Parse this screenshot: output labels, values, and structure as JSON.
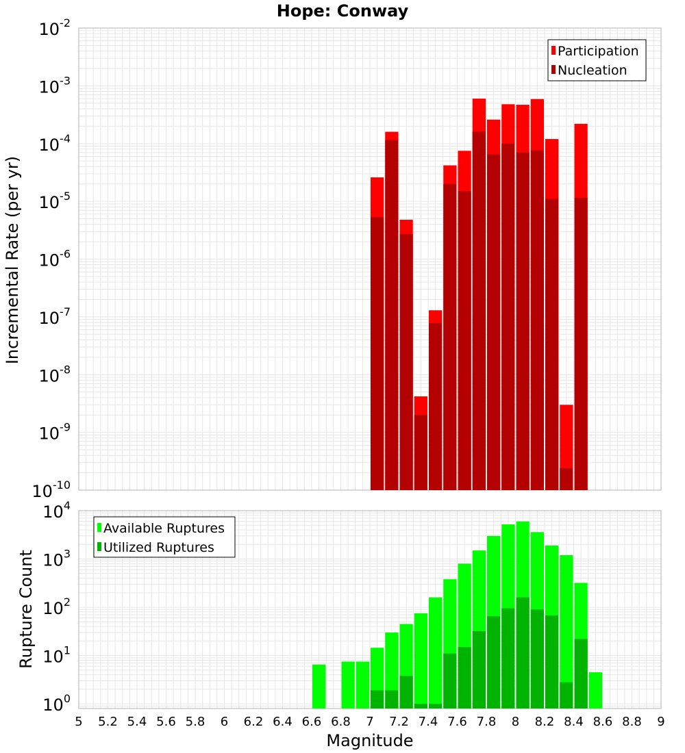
{
  "chart_data": [
    {
      "type": "bar",
      "title": "Hope: Conway",
      "xlabel": "",
      "ylabel": "Incremental Rate (per yr)",
      "yscale": "log",
      "ylim": [
        1e-10,
        0.01
      ],
      "xlim": [
        5,
        9
      ],
      "grid": true,
      "legend_position": "top-right",
      "y_tick_exponents": [
        "-10",
        "-9",
        "-8",
        "-7",
        "-6",
        "-5",
        "-4",
        "-3",
        "-2"
      ],
      "bin_width": 0.1,
      "series": [
        {
          "name": "Participation",
          "color": "#ff0000",
          "points": [
            {
              "x": 7.05,
              "y": 2.6e-05
            },
            {
              "x": 7.15,
              "y": 0.00016
            },
            {
              "x": 7.25,
              "y": 4.8e-06
            },
            {
              "x": 7.35,
              "y": 4.2e-09
            },
            {
              "x": 7.45,
              "y": 1.3e-07
            },
            {
              "x": 7.55,
              "y": 4.2e-05
            },
            {
              "x": 7.65,
              "y": 7.5e-05
            },
            {
              "x": 7.75,
              "y": 0.0006
            },
            {
              "x": 7.85,
              "y": 0.00026
            },
            {
              "x": 7.95,
              "y": 0.00048
            },
            {
              "x": 8.05,
              "y": 0.00047
            },
            {
              "x": 8.15,
              "y": 0.00059
            },
            {
              "x": 8.25,
              "y": 0.00012
            },
            {
              "x": 8.35,
              "y": 3e-09
            },
            {
              "x": 8.45,
              "y": 0.00022
            }
          ]
        },
        {
          "name": "Nucleation",
          "color": "#b30000",
          "points": [
            {
              "x": 7.05,
              "y": 5.3e-06
            },
            {
              "x": 7.15,
              "y": 0.000115
            },
            {
              "x": 7.25,
              "y": 2.7e-06
            },
            {
              "x": 7.35,
              "y": 2e-09
            },
            {
              "x": 7.45,
              "y": 7.8e-08
            },
            {
              "x": 7.55,
              "y": 2e-05
            },
            {
              "x": 7.65,
              "y": 1.5e-05
            },
            {
              "x": 7.75,
              "y": 0.00016
            },
            {
              "x": 7.85,
              "y": 6.5e-05
            },
            {
              "x": 7.95,
              "y": 0.0001
            },
            {
              "x": 8.05,
              "y": 7e-05
            },
            {
              "x": 8.15,
              "y": 7.6e-05
            },
            {
              "x": 8.25,
              "y": 1.1e-05
            },
            {
              "x": 8.35,
              "y": 2.4e-10
            },
            {
              "x": 8.45,
              "y": 1.15e-05
            }
          ]
        }
      ]
    },
    {
      "type": "bar",
      "title": "",
      "xlabel": "Magnitude",
      "ylabel": "Rupture Count",
      "yscale": "log",
      "ylim": [
        0.8,
        10000
      ],
      "xlim": [
        5,
        9
      ],
      "grid": true,
      "legend_position": "top-left",
      "x_ticks": [
        "5",
        "5.2",
        "5.4",
        "5.6",
        "5.8",
        "6",
        "6.2",
        "6.4",
        "6.6",
        "6.8",
        "7",
        "7.2",
        "7.4",
        "7.6",
        "7.8",
        "8",
        "8.2",
        "8.4",
        "8.6",
        "8.8",
        "9"
      ],
      "y_tick_exponents": [
        "0",
        "1",
        "2",
        "3",
        "4"
      ],
      "bin_width": 0.1,
      "series": [
        {
          "name": "Available Ruptures",
          "color": "#00ff00",
          "points": [
            {
              "x": 6.65,
              "y": 6.5
            },
            {
              "x": 6.85,
              "y": 7.5
            },
            {
              "x": 6.95,
              "y": 7.5
            },
            {
              "x": 7.05,
              "y": 14.5
            },
            {
              "x": 7.15,
              "y": 30
            },
            {
              "x": 7.25,
              "y": 45
            },
            {
              "x": 7.35,
              "y": 75
            },
            {
              "x": 7.45,
              "y": 160
            },
            {
              "x": 7.55,
              "y": 380
            },
            {
              "x": 7.65,
              "y": 800
            },
            {
              "x": 7.75,
              "y": 1500
            },
            {
              "x": 7.85,
              "y": 3000
            },
            {
              "x": 7.95,
              "y": 5200
            },
            {
              "x": 8.05,
              "y": 6000
            },
            {
              "x": 8.15,
              "y": 3600
            },
            {
              "x": 8.25,
              "y": 1900
            },
            {
              "x": 8.35,
              "y": 1200
            },
            {
              "x": 8.45,
              "y": 320
            },
            {
              "x": 8.55,
              "y": 4.5
            }
          ]
        },
        {
          "name": "Utilized Ruptures",
          "color": "#00b300",
          "points": [
            {
              "x": 7.05,
              "y": 1.9
            },
            {
              "x": 7.15,
              "y": 1.9
            },
            {
              "x": 7.25,
              "y": 3.8
            },
            {
              "x": 7.35,
              "y": 1
            },
            {
              "x": 7.45,
              "y": 1
            },
            {
              "x": 7.55,
              "y": 11
            },
            {
              "x": 7.65,
              "y": 15
            },
            {
              "x": 7.75,
              "y": 32
            },
            {
              "x": 7.85,
              "y": 65
            },
            {
              "x": 7.95,
              "y": 95
            },
            {
              "x": 8.05,
              "y": 160
            },
            {
              "x": 8.15,
              "y": 90
            },
            {
              "x": 8.25,
              "y": 68
            },
            {
              "x": 8.35,
              "y": 2.8
            },
            {
              "x": 8.45,
              "y": 22
            }
          ]
        }
      ]
    }
  ]
}
